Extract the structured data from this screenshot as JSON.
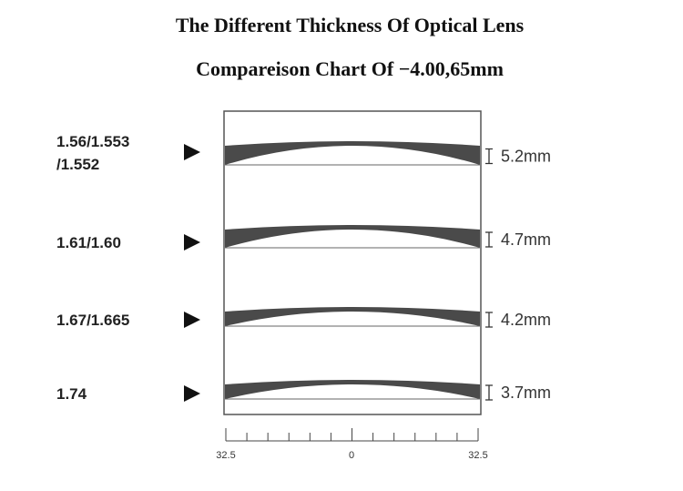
{
  "header": {
    "title": "The Different Thickness Of Optical Lens",
    "subtitle": "Compareison Chart Of −4.00,65mm"
  },
  "lenses": [
    {
      "label": [
        "1.56/1.553",
        "/1.552"
      ],
      "thickness": "5.2mm"
    },
    {
      "label": [
        "1.61/1.60"
      ],
      "thickness": "4.7mm"
    },
    {
      "label": [
        "1.67/1.665"
      ],
      "thickness": "4.2mm"
    },
    {
      "label": [
        "1.74"
      ],
      "thickness": "3.7mm"
    }
  ],
  "axis": {
    "labels": [
      "32.5",
      "0",
      "32.5"
    ]
  }
}
